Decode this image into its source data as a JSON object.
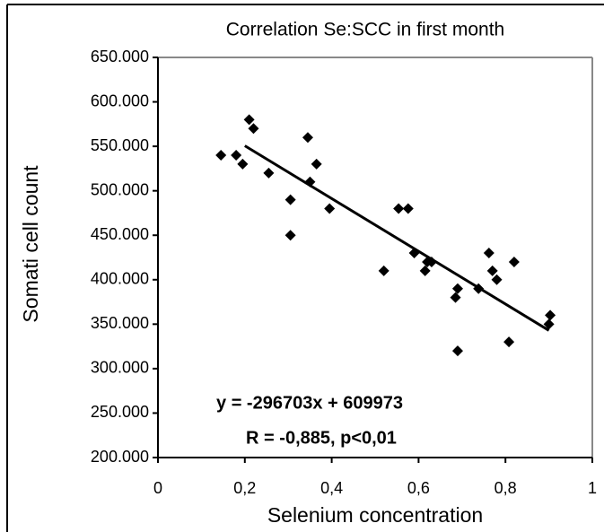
{
  "chart_data": {
    "type": "scatter",
    "title": "Correlation Se:SCC in first month",
    "x_label": "Selenium concentration",
    "y_label": "Somati cell count",
    "annotations": [
      "y = -296703x + 609973",
      "R = -0,885, p<0,01"
    ],
    "series": [
      {
        "color": "#000000",
        "x": [
          0.145,
          0.18,
          0.195,
          0.21,
          0.22,
          0.255,
          0.345,
          0.35,
          0.365,
          0.305,
          0.305,
          0.395,
          0.554,
          0.576,
          0.52,
          0.59,
          0.615,
          0.62,
          0.63,
          0.685,
          0.69,
          0.69,
          0.808,
          0.82,
          0.762,
          0.77,
          0.78,
          0.738,
          0.903,
          0.9
        ],
        "values": [
          540000,
          540000,
          530000,
          580000,
          570000,
          520000,
          560000,
          510000,
          530000,
          490000,
          450000,
          480000,
          480000,
          480000,
          410000,
          430000,
          410000,
          420000,
          420000,
          380000,
          390000,
          320000,
          330000,
          420000,
          430000,
          410000,
          400000,
          390000,
          360000,
          350000
        ]
      }
    ],
    "trendline": {
      "x": [
        0.2,
        0.9
      ],
      "values": [
        550632,
        342940
      ],
      "color": "#000000"
    },
    "xlim": [
      0,
      1
    ],
    "ylim": [
      200000,
      650000
    ],
    "xticks": [
      0,
      {
        "value": 0.2,
        "label": "0,2"
      },
      {
        "value": 0.4,
        "label": "0,4"
      },
      {
        "value": 0.6,
        "label": "0,6"
      },
      {
        "value": 0.8,
        "label": "0,8"
      },
      1
    ],
    "yticks": [
      {
        "value": 200000,
        "label": "200.000"
      },
      {
        "value": 250000,
        "label": "250.000"
      },
      {
        "value": 300000,
        "label": "300.000"
      },
      {
        "value": 350000,
        "label": "350.000"
      },
      {
        "value": 400000,
        "label": "400.000"
      },
      {
        "value": 450000,
        "label": "450.000"
      },
      {
        "value": 500000,
        "label": "500.000"
      },
      {
        "value": 550000,
        "label": "550.000"
      },
      {
        "value": 600000,
        "label": "600.000"
      },
      {
        "value": 650000,
        "label": "650.000"
      }
    ]
  }
}
